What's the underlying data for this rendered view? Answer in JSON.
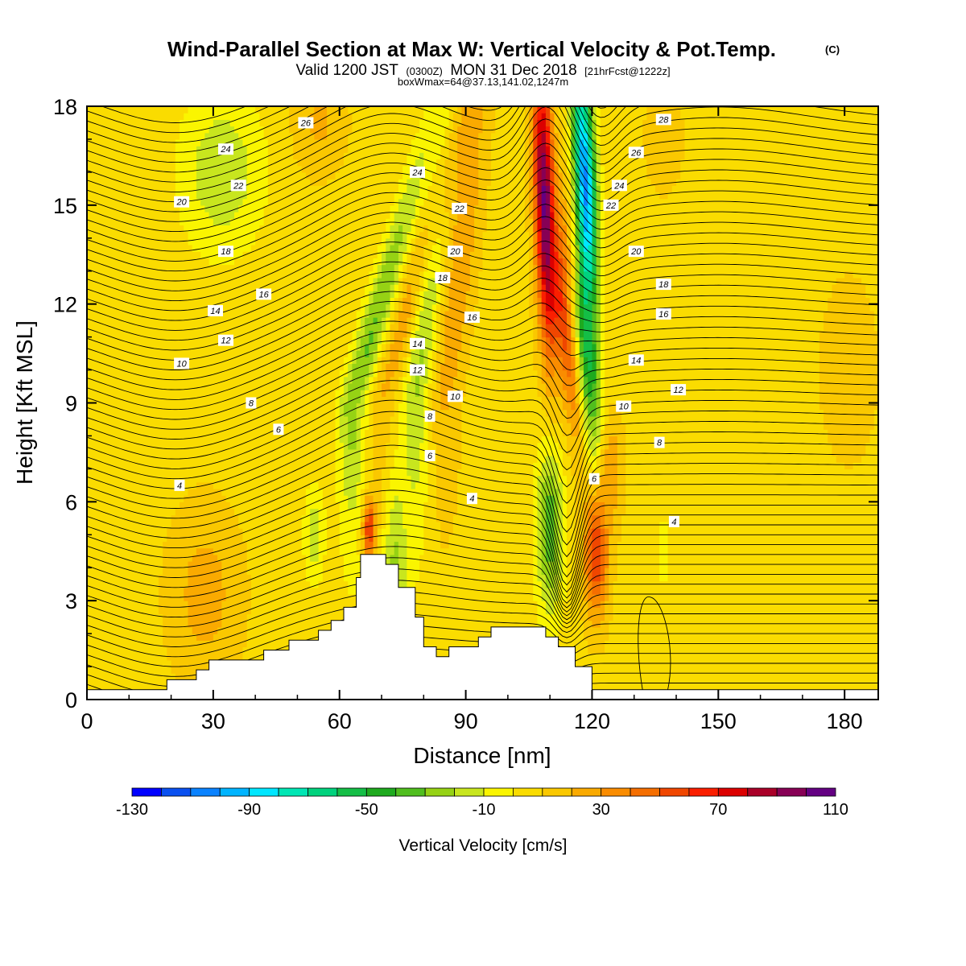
{
  "chart_data": {
    "type": "heatmap",
    "title": "Wind-Parallel Section at Max W: Vertical Velocity & Pot.Temp.",
    "title_mark": "(C)",
    "subtitle": {
      "valid_prefix": "Valid 1200 JST",
      "utc": "(0300Z)",
      "date": "MON 31 Dec 2018",
      "forecast": "[21hrFcst@1222z]"
    },
    "box_info": "boxWmax=64@37.13,141.02,1247m",
    "xlabel": "Distance [nm]",
    "ylabel": "Height [Kft MSL]",
    "xlim": [
      0,
      188
    ],
    "ylim": [
      0,
      18
    ],
    "x_ticks": [
      "0",
      "30",
      "60",
      "90",
      "120",
      "150",
      "180"
    ],
    "x_tick_values": [
      0,
      30,
      60,
      90,
      120,
      150,
      180
    ],
    "y_ticks": [
      "0",
      "3",
      "6",
      "9",
      "12",
      "15",
      "18"
    ],
    "y_tick_values": [
      0,
      3,
      6,
      9,
      12,
      15,
      18
    ],
    "colorbar": {
      "label": "Vertical Velocity [cm/s]",
      "tick_labels": [
        "-130",
        "-90",
        "-50",
        "-10",
        "30",
        "70",
        "110"
      ],
      "tick_values": [
        -130,
        -90,
        -50,
        -10,
        30,
        70,
        110
      ],
      "levels": [
        -130,
        -120,
        -110,
        -100,
        -90,
        -80,
        -70,
        -60,
        -50,
        -40,
        -30,
        -20,
        -10,
        0,
        10,
        20,
        30,
        40,
        50,
        60,
        70,
        80,
        90,
        100,
        110
      ],
      "colors": [
        "#0000ff",
        "#0a50f0",
        "#0a82ff",
        "#00b4ff",
        "#00e6ff",
        "#00e6b4",
        "#00d27d",
        "#14be46",
        "#1eaa1e",
        "#50be1e",
        "#96d214",
        "#c8e61e",
        "#faf500",
        "#fadc00",
        "#fac800",
        "#faaa00",
        "#fa8c00",
        "#f56e00",
        "#f04600",
        "#fa1e00",
        "#dc0000",
        "#aa0028",
        "#870055",
        "#640082"
      ]
    },
    "contour_labels": [
      {
        "x": 22,
        "y": 6.5,
        "text": "4"
      },
      {
        "x": 91.5,
        "y": 6.1,
        "text": "4"
      },
      {
        "x": 139.5,
        "y": 5.4,
        "text": "4"
      },
      {
        "x": 45.5,
        "y": 8.2,
        "text": "6"
      },
      {
        "x": 81.5,
        "y": 7.4,
        "text": "6"
      },
      {
        "x": 120.5,
        "y": 6.7,
        "text": "6"
      },
      {
        "x": 39,
        "y": 9.0,
        "text": "8"
      },
      {
        "x": 81.5,
        "y": 8.6,
        "text": "8"
      },
      {
        "x": 136,
        "y": 7.8,
        "text": "8"
      },
      {
        "x": 22.5,
        "y": 10.2,
        "text": "10"
      },
      {
        "x": 87.5,
        "y": 9.2,
        "text": "10"
      },
      {
        "x": 127.5,
        "y": 8.9,
        "text": "10"
      },
      {
        "x": 33,
        "y": 10.9,
        "text": "12"
      },
      {
        "x": 78.5,
        "y": 10.0,
        "text": "12"
      },
      {
        "x": 140.5,
        "y": 9.4,
        "text": "12"
      },
      {
        "x": 30.5,
        "y": 11.8,
        "text": "14"
      },
      {
        "x": 78.5,
        "y": 10.8,
        "text": "14"
      },
      {
        "x": 130.5,
        "y": 10.3,
        "text": "14"
      },
      {
        "x": 42,
        "y": 12.3,
        "text": "16"
      },
      {
        "x": 91.5,
        "y": 11.6,
        "text": "16"
      },
      {
        "x": 137,
        "y": 11.7,
        "text": "16"
      },
      {
        "x": 33,
        "y": 13.6,
        "text": "18"
      },
      {
        "x": 84.5,
        "y": 12.8,
        "text": "18"
      },
      {
        "x": 137,
        "y": 12.6,
        "text": "18"
      },
      {
        "x": 22.5,
        "y": 15.1,
        "text": "20"
      },
      {
        "x": 87.5,
        "y": 13.6,
        "text": "20"
      },
      {
        "x": 130.5,
        "y": 13.6,
        "text": "20"
      },
      {
        "x": 36,
        "y": 15.6,
        "text": "22"
      },
      {
        "x": 88.5,
        "y": 14.9,
        "text": "22"
      },
      {
        "x": 124.5,
        "y": 15.0,
        "text": "22"
      },
      {
        "x": 33,
        "y": 16.7,
        "text": "24"
      },
      {
        "x": 78.5,
        "y": 16.0,
        "text": "24"
      },
      {
        "x": 126.5,
        "y": 15.6,
        "text": "24"
      },
      {
        "x": 130.5,
        "y": 16.6,
        "text": "26"
      },
      {
        "x": 52,
        "y": 17.5,
        "text": "26"
      },
      {
        "x": 137,
        "y": 17.6,
        "text": "28"
      }
    ],
    "terrain": [
      [
        0,
        0.3
      ],
      [
        19,
        0.3
      ],
      [
        19,
        0.6
      ],
      [
        26,
        0.6
      ],
      [
        26,
        0.9
      ],
      [
        29,
        0.9
      ],
      [
        29,
        1.2
      ],
      [
        42,
        1.2
      ],
      [
        42,
        1.5
      ],
      [
        48,
        1.5
      ],
      [
        48,
        1.8
      ],
      [
        55,
        1.8
      ],
      [
        55,
        2.1
      ],
      [
        58,
        2.1
      ],
      [
        58,
        2.4
      ],
      [
        61,
        2.4
      ],
      [
        61,
        2.8
      ],
      [
        64,
        2.8
      ],
      [
        64,
        3.7
      ],
      [
        65,
        3.7
      ],
      [
        65,
        4.4
      ],
      [
        71,
        4.4
      ],
      [
        71,
        4.1
      ],
      [
        74,
        4.1
      ],
      [
        74,
        3.4
      ],
      [
        78,
        3.4
      ],
      [
        78,
        2.5
      ],
      [
        80,
        2.5
      ],
      [
        80,
        1.6
      ],
      [
        83,
        1.6
      ],
      [
        83,
        1.3
      ],
      [
        86,
        1.3
      ],
      [
        86,
        1.6
      ],
      [
        93,
        1.6
      ],
      [
        93,
        1.9
      ],
      [
        96,
        1.9
      ],
      [
        96,
        2.2
      ],
      [
        109,
        2.2
      ],
      [
        109,
        1.9
      ],
      [
        112,
        1.9
      ],
      [
        112,
        1.6
      ],
      [
        116,
        1.6
      ],
      [
        116,
        1.0
      ],
      [
        120,
        1.0
      ],
      [
        120,
        0.3
      ],
      [
        188,
        0.3
      ]
    ]
  }
}
